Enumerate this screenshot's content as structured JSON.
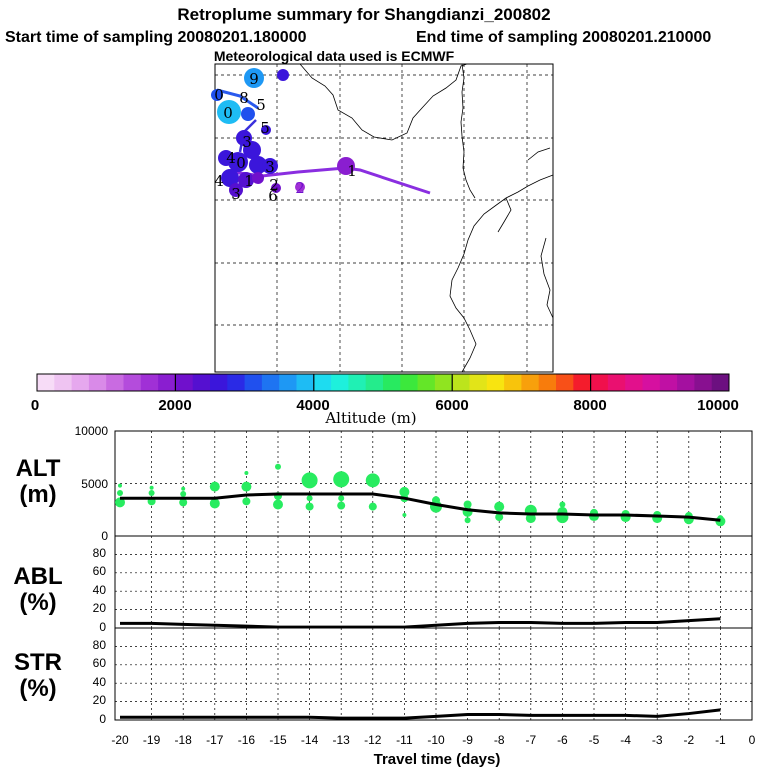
{
  "header": {
    "title": "Retroplume summary for Shangdianzi_200802",
    "start_label": "Start time of sampling 20080201.180000",
    "end_label": "End time of sampling 20080201.210000",
    "met_label": "Meteorological data used is ECMWF"
  },
  "colorbar": {
    "ticks": [
      "0",
      "2000",
      "4000",
      "6000",
      "8000",
      "10000"
    ],
    "label": "Altitude (m)",
    "colors": [
      "#f7dcf7",
      "#efc4f2",
      "#e6a8ee",
      "#d98ae8",
      "#c96be1",
      "#b44cdc",
      "#a030d6",
      "#8a1ed0",
      "#7010cc",
      "#5510d0",
      "#3b16db",
      "#2a2ae6",
      "#2050ee",
      "#1e74f2",
      "#1e98f4",
      "#1ebcf4",
      "#1edcf0",
      "#1ef0dc",
      "#20f0b4",
      "#24ec8c",
      "#28ea60",
      "#3ce83c",
      "#64e628",
      "#90e420",
      "#bce41c",
      "#e2e418",
      "#f8e410",
      "#f8c40c",
      "#f8a00c",
      "#f87c0c",
      "#f85018",
      "#f41c2c",
      "#f0104c",
      "#ea1070",
      "#e2108c",
      "#d610a0",
      "#c010a4",
      "#a410a0",
      "#881090",
      "#6c1080"
    ]
  },
  "map": {
    "trajectory_labels": [
      "9",
      "8",
      "0",
      "0",
      "5",
      "5",
      "3",
      "4",
      "0",
      "3",
      "2",
      "1",
      "4",
      "3",
      "6",
      "2",
      "1"
    ]
  },
  "chart_data": [
    {
      "type": "scatter+line",
      "title": "ALT (m)",
      "panel_label_line1": "ALT",
      "panel_label_line2": "(m)",
      "ylim": [
        0,
        10000
      ],
      "yticks": [
        "10000",
        "5000",
        "0"
      ],
      "x": [
        -20,
        -19,
        -18,
        -17,
        -16,
        -15,
        -14,
        -13,
        -12,
        -11,
        -10,
        -9,
        -8,
        -7,
        -6,
        -5,
        -4,
        -3,
        -2,
        -1
      ],
      "mean_line": [
        3600,
        3600,
        3600,
        3600,
        3900,
        4000,
        4000,
        4000,
        4000,
        3600,
        3000,
        2500,
        2200,
        2100,
        2100,
        2000,
        2000,
        1900,
        1800,
        1500
      ],
      "scatter_color": "#28ec60",
      "scatter": [
        {
          "x": -20,
          "y": 3200,
          "s": 5
        },
        {
          "x": -20,
          "y": 4100,
          "s": 3
        },
        {
          "x": -20,
          "y": 4800,
          "s": 2
        },
        {
          "x": -19,
          "y": 3300,
          "s": 4
        },
        {
          "x": -19,
          "y": 4100,
          "s": 3
        },
        {
          "x": -19,
          "y": 4600,
          "s": 2
        },
        {
          "x": -18,
          "y": 3200,
          "s": 4
        },
        {
          "x": -18,
          "y": 4000,
          "s": 3
        },
        {
          "x": -18,
          "y": 4500,
          "s": 2
        },
        {
          "x": -17,
          "y": 3100,
          "s": 5
        },
        {
          "x": -17,
          "y": 4700,
          "s": 5
        },
        {
          "x": -16,
          "y": 3300,
          "s": 4
        },
        {
          "x": -16,
          "y": 4700,
          "s": 5
        },
        {
          "x": -16,
          "y": 6000,
          "s": 2
        },
        {
          "x": -15,
          "y": 3000,
          "s": 5
        },
        {
          "x": -15,
          "y": 3800,
          "s": 4
        },
        {
          "x": -15,
          "y": 6600,
          "s": 3
        },
        {
          "x": -14,
          "y": 2800,
          "s": 4
        },
        {
          "x": -14,
          "y": 3600,
          "s": 3
        },
        {
          "x": -14,
          "y": 5300,
          "s": 8
        },
        {
          "x": -13,
          "y": 2900,
          "s": 4
        },
        {
          "x": -13,
          "y": 3600,
          "s": 3
        },
        {
          "x": -13,
          "y": 5400,
          "s": 8
        },
        {
          "x": -12,
          "y": 2800,
          "s": 4
        },
        {
          "x": -12,
          "y": 5300,
          "s": 7
        },
        {
          "x": -11,
          "y": 2000,
          "s": 2
        },
        {
          "x": -11,
          "y": 3600,
          "s": 4
        },
        {
          "x": -11,
          "y": 4200,
          "s": 5
        },
        {
          "x": -10,
          "y": 2800,
          "s": 6
        },
        {
          "x": -10,
          "y": 3400,
          "s": 4
        },
        {
          "x": -9,
          "y": 1500,
          "s": 3
        },
        {
          "x": -9,
          "y": 2300,
          "s": 5
        },
        {
          "x": -9,
          "y": 3000,
          "s": 4
        },
        {
          "x": -8,
          "y": 1800,
          "s": 4
        },
        {
          "x": -8,
          "y": 2800,
          "s": 5
        },
        {
          "x": -7,
          "y": 1700,
          "s": 5
        },
        {
          "x": -7,
          "y": 2400,
          "s": 6
        },
        {
          "x": -6,
          "y": 1800,
          "s": 6
        },
        {
          "x": -6,
          "y": 2300,
          "s": 5
        },
        {
          "x": -6,
          "y": 3000,
          "s": 3
        },
        {
          "x": -5,
          "y": 1900,
          "s": 5
        },
        {
          "x": -5,
          "y": 2200,
          "s": 4
        },
        {
          "x": -4,
          "y": 1800,
          "s": 5
        },
        {
          "x": -4,
          "y": 2100,
          "s": 4
        },
        {
          "x": -3,
          "y": 1700,
          "s": 5
        },
        {
          "x": -3,
          "y": 2000,
          "s": 4
        },
        {
          "x": -2,
          "y": 1600,
          "s": 5
        },
        {
          "x": -2,
          "y": 1900,
          "s": 4
        },
        {
          "x": -1,
          "y": 1400,
          "s": 5
        },
        {
          "x": -1,
          "y": 1700,
          "s": 3
        }
      ]
    },
    {
      "type": "line",
      "title": "ABL (%)",
      "panel_label_line1": "ABL",
      "panel_label_line2": "(%)",
      "ylim": [
        0,
        100
      ],
      "yticks": [
        "80",
        "60",
        "40",
        "20",
        "0"
      ],
      "x": [
        -20,
        -19,
        -18,
        -17,
        -16,
        -15,
        -14,
        -13,
        -12,
        -11,
        -10,
        -9,
        -8,
        -7,
        -6,
        -5,
        -4,
        -3,
        -2,
        -1
      ],
      "values": [
        5,
        5,
        4,
        3,
        2,
        1,
        1,
        1,
        1,
        1,
        3,
        5,
        6,
        6,
        5,
        5,
        6,
        6,
        8,
        10
      ]
    },
    {
      "type": "line",
      "title": "STR (%)",
      "panel_label_line1": "STR",
      "panel_label_line2": "(%)",
      "ylim": [
        0,
        100
      ],
      "yticks": [
        "80",
        "60",
        "40",
        "20",
        "0"
      ],
      "x": [
        -20,
        -19,
        -18,
        -17,
        -16,
        -15,
        -14,
        -13,
        -12,
        -11,
        -10,
        -9,
        -8,
        -7,
        -6,
        -5,
        -4,
        -3,
        -2,
        -1
      ],
      "values": [
        3,
        3,
        3,
        3,
        3,
        3,
        3,
        2,
        2,
        2,
        4,
        6,
        6,
        5,
        5,
        5,
        5,
        4,
        7,
        11
      ],
      "xlabel": "Travel time (days)",
      "xticklabels": [
        "-20",
        "-19",
        "-18",
        "-17",
        "-16",
        "-15",
        "-14",
        "-13",
        "-12",
        "-11",
        "-10",
        "-9",
        "-8",
        "-7",
        "-6",
        "-5",
        "-4",
        "-3",
        "-2",
        "-1",
        "0"
      ]
    }
  ]
}
